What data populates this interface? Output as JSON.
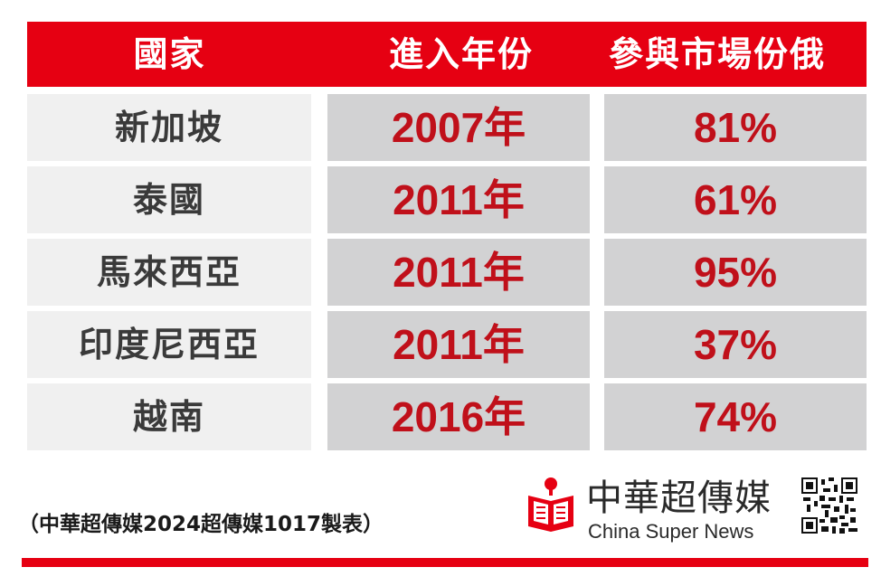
{
  "header": {
    "country": "國家",
    "year": "進入年份",
    "share": "參與市場份俄"
  },
  "rows": [
    {
      "country": "新加坡",
      "year": "2007年",
      "share": "81%"
    },
    {
      "country": "泰國",
      "year": "2011年",
      "share": "61%"
    },
    {
      "country": "馬來西亞",
      "year": "2011年",
      "share": "95%"
    },
    {
      "country": "印度尼西亞",
      "year": "2011年",
      "share": "37%"
    },
    {
      "country": "越南",
      "year": "2016年",
      "share": "74%"
    }
  ],
  "footer": {
    "source": "（中華超傳媒2024超傳媒1017製表）",
    "brand_cn": "中華超傳媒",
    "brand_en": "China Super News"
  },
  "colors": {
    "accent_red": "#e60012",
    "value_red": "#c0101a",
    "country_cell": "#f0f0f0",
    "value_cell": "#d2d2d3"
  },
  "icons": {
    "logo": "reading-figure-logo-icon",
    "qr": "qr-code-icon"
  }
}
